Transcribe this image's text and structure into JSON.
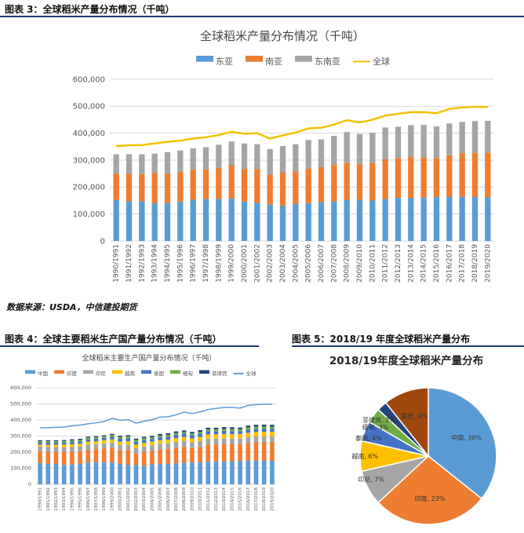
{
  "figure3": {
    "caption": "图表 3：全球稻米产量分布情况（千吨）",
    "chart_data": {
      "type": "bar",
      "title": "全球稻米产量分布情况（千吨）",
      "stacked": true,
      "categories": [
        "1990/1991",
        "1991/1992",
        "1992/1993",
        "1993/1994",
        "1994/1995",
        "1995/1996",
        "1996/1997",
        "1997/1998",
        "1998/1999",
        "1999/2000",
        "2000/2001",
        "2001/2002",
        "2002/2003",
        "2003/2004",
        "2004/2005",
        "2005/2006",
        "2006/2007",
        "2007/2008",
        "2008/2009",
        "2009/2010",
        "2010/2011",
        "2011/2012",
        "2012/2013",
        "2013/2014",
        "2014/2015",
        "2015/2016",
        "2016/2017",
        "2017/2018",
        "2018/2019",
        "2019/2020"
      ],
      "series": [
        {
          "name": "东亚",
          "color": "#5B9BD5",
          "values": [
            152000,
            147000,
            148000,
            140000,
            140000,
            146000,
            153000,
            156000,
            156000,
            158000,
            146000,
            142000,
            136000,
            130000,
            137000,
            140000,
            144000,
            147000,
            152000,
            153000,
            150000,
            156000,
            160000,
            160000,
            161000,
            163000,
            163000,
            164000,
            163000,
            162000
          ]
        },
        {
          "name": "南亚",
          "color": "#ED7D31",
          "values": [
            98000,
            103000,
            100000,
            112000,
            110000,
            110000,
            111000,
            110000,
            115000,
            123000,
            121000,
            125000,
            110000,
            125000,
            121000,
            128000,
            130000,
            135000,
            139000,
            132000,
            140000,
            147000,
            148000,
            152000,
            150000,
            144000,
            155000,
            162000,
            164000,
            166000
          ]
        },
        {
          "name": "东南亚",
          "color": "#A5A5A5",
          "values": [
            72000,
            72000,
            74000,
            72000,
            80000,
            80000,
            80000,
            82000,
            86000,
            88000,
            95000,
            92000,
            95000,
            97000,
            101000,
            107000,
            103000,
            108000,
            113000,
            112000,
            112000,
            118000,
            116000,
            118000,
            120000,
            118000,
            118000,
            116000,
            118000,
            118000
          ]
        },
        {
          "name": "全球",
          "type": "line",
          "color": "#F2C200",
          "values": [
            352000,
            355000,
            356000,
            362000,
            368000,
            372000,
            380000,
            385000,
            393000,
            405000,
            398000,
            400000,
            380000,
            392000,
            402000,
            418000,
            420000,
            432000,
            448000,
            440000,
            450000,
            465000,
            472000,
            478000,
            478000,
            474000,
            490000,
            495000,
            498000,
            497000
          ]
        }
      ],
      "ylim": [
        0,
        600000
      ],
      "yticks": [
        "0",
        "100,000",
        "200,000",
        "300,000",
        "400,000",
        "500,000",
        "600,000"
      ],
      "legend": "top"
    }
  },
  "source": "数据来源：USDA，中信建投期货",
  "figure4": {
    "caption": "图表 4：全球主要稻米生产国产量分布情况（千吨）",
    "chart_data": {
      "type": "bar",
      "title": "全球稻米主要生产国产量分布情况（千吨）",
      "stacked": true,
      "categories": [
        "1990/1991",
        "1991/1992",
        "1992/1993",
        "1993/1994",
        "1994/1995",
        "1995/1996",
        "1996/1997",
        "1997/1998",
        "1998/1999",
        "1999/2000",
        "2000/2001",
        "2001/2002",
        "2002/2003",
        "2003/2004",
        "2004/2005",
        "2005/2006",
        "2006/2007",
        "2007/2008",
        "2008/2009",
        "2009/2010",
        "2010/2011",
        "2011/2012",
        "2012/2013",
        "2013/2014",
        "2014/2015",
        "2015/2016",
        "2016/2017",
        "2017/2018",
        "2018/2019",
        "2019/2020"
      ],
      "series": [
        {
          "name": "中国",
          "color": "#5B9BD5",
          "values": [
            132000,
            128000,
            128000,
            121000,
            123000,
            127000,
            134000,
            137000,
            137000,
            136000,
            128000,
            122000,
            120000,
            112000,
            125000,
            126000,
            127000,
            130000,
            134000,
            136000,
            137000,
            141000,
            143000,
            142000,
            144000,
            146000,
            147000,
            148000,
            148000,
            146000
          ]
        },
        {
          "name": "印度",
          "color": "#ED7D31",
          "values": [
            74000,
            74000,
            73000,
            80000,
            81000,
            77000,
            81000,
            82000,
            86000,
            90000,
            85000,
            93000,
            72000,
            88000,
            83000,
            92000,
            93000,
            96000,
            99000,
            89000,
            96000,
            105000,
            105000,
            107000,
            105000,
            104000,
            110000,
            113000,
            116000,
            118000
          ]
        },
        {
          "name": "印尼",
          "color": "#A5A5A5",
          "values": [
            29000,
            30000,
            31000,
            31000,
            30000,
            32000,
            33000,
            31000,
            32000,
            33000,
            33000,
            32000,
            33000,
            35000,
            35000,
            34000,
            35000,
            37000,
            38000,
            36000,
            36000,
            37000,
            36000,
            36000,
            35000,
            36000,
            37000,
            37000,
            34000,
            35000
          ]
        },
        {
          "name": "越南",
          "color": "#FFC000",
          "values": [
            12000,
            13000,
            14000,
            15000,
            15000,
            16000,
            17000,
            18000,
            19000,
            20000,
            20000,
            21000,
            22000,
            22000,
            22000,
            22000,
            23000,
            24000,
            24000,
            24000,
            26000,
            27000,
            27000,
            28000,
            28000,
            28000,
            27000,
            27000,
            28000,
            28000
          ]
        },
        {
          "name": "泰国",
          "color": "#4472C4",
          "values": [
            12000,
            14000,
            13000,
            12000,
            14000,
            14000,
            14000,
            15000,
            15000,
            16000,
            17000,
            18000,
            17000,
            18000,
            17000,
            18000,
            18000,
            20000,
            20000,
            20000,
            20000,
            20000,
            18000,
            19000,
            19000,
            16000,
            19000,
            20000,
            20000,
            18000
          ]
        },
        {
          "name": "缅甸",
          "color": "#70AD47",
          "values": [
            9000,
            9000,
            9000,
            10000,
            10000,
            10000,
            10000,
            10000,
            10000,
            11000,
            11000,
            11000,
            11000,
            11000,
            10000,
            11000,
            11000,
            11000,
            10000,
            11000,
            11000,
            11000,
            12000,
            12000,
            12000,
            12000,
            13000,
            13000,
            13000,
            13000
          ]
        },
        {
          "name": "菲律宾",
          "color": "#264478",
          "values": [
            6000,
            6000,
            6000,
            6000,
            7000,
            7000,
            7000,
            6000,
            6000,
            8000,
            8000,
            8000,
            9000,
            9000,
            9000,
            10000,
            10000,
            11000,
            10000,
            10000,
            11000,
            11000,
            11000,
            12000,
            12000,
            11000,
            12000,
            12000,
            12000,
            12000
          ]
        },
        {
          "name": "全球",
          "type": "line",
          "color": "#5B9BD5",
          "values": [
            351000,
            352000,
            354000,
            356000,
            364000,
            368000,
            376000,
            382000,
            390000,
            410000,
            398000,
            402000,
            380000,
            392000,
            402000,
            418000,
            420000,
            432000,
            448000,
            440000,
            450000,
            465000,
            472000,
            478000,
            478000,
            474000,
            490000,
            495000,
            498000,
            497000
          ]
        }
      ],
      "ylim": [
        0,
        600000
      ],
      "yticks": [
        "0",
        "100,000",
        "200,000",
        "300,000",
        "400,000",
        "500,000",
        "600,000"
      ],
      "legend": "top"
    }
  },
  "figure5": {
    "caption": "图表 5：2018/19 年度全球稻米产量分布",
    "chart_data": {
      "type": "pie",
      "title": "2018/19年度全球稻米产量分布",
      "slices": [
        {
          "name": "中国",
          "value": 30,
          "label": "中国, 30%",
          "color": "#5B9BD5"
        },
        {
          "name": "印度",
          "value": 23,
          "label": "印度, 23%",
          "color": "#ED7D31"
        },
        {
          "name": "印尼",
          "value": 7,
          "label": "印尼, 7%",
          "color": "#A5A5A5"
        },
        {
          "name": "越南",
          "value": 6,
          "label": "越南, 6%",
          "color": "#FFC000"
        },
        {
          "name": "泰国",
          "value": 4,
          "label": "泰国, 4%",
          "color": "#4472C4"
        },
        {
          "name": "缅甸",
          "value": 3,
          "label": "缅甸, 3%",
          "color": "#70AD47"
        },
        {
          "name": "菲律宾",
          "value": 2,
          "label": "菲律宾, 2%",
          "color": "#264478"
        },
        {
          "name": "其他",
          "value": 9,
          "label": "其他, 9%",
          "color": "#9E480E"
        }
      ]
    }
  }
}
